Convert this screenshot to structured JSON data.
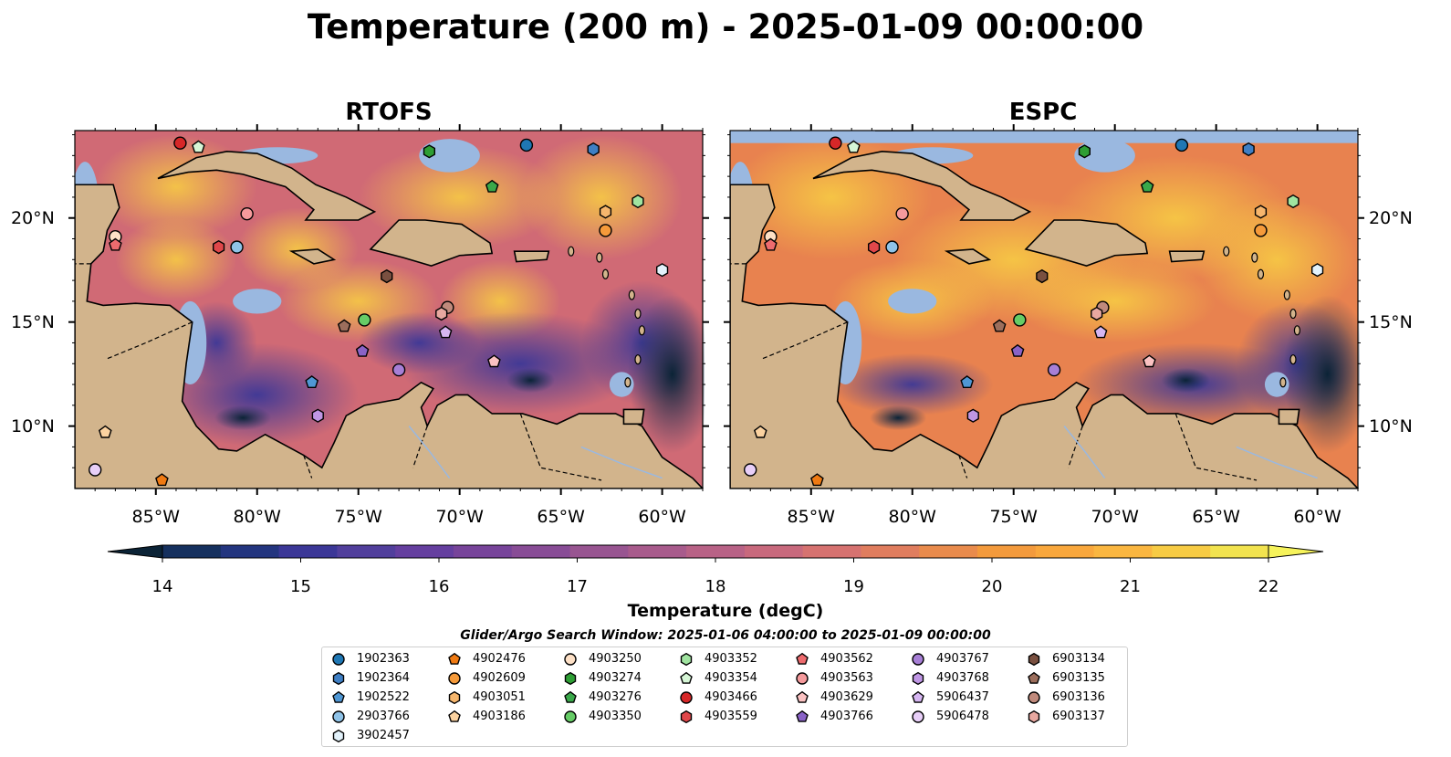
{
  "figure": {
    "title": "Temperature (200 m) - 2025-01-09 00:00:00",
    "search_window": "Glider/Argo Search Window: 2025-01-06 04:00:00 to 2025-01-09 00:00:00"
  },
  "chart_data": {
    "type": "heatmap",
    "variable": "Temperature at 200 m",
    "panels": [
      {
        "title": "RTOFS",
        "region": "Caribbean Sea",
        "lon_range": [
          -89,
          -58
        ],
        "lat_range": [
          7,
          24.2
        ]
      },
      {
        "title": "ESPC",
        "region": "Caribbean Sea",
        "lon_range": [
          -89,
          -58
        ],
        "lat_range": [
          7,
          24.2
        ]
      }
    ],
    "x_ticks": [
      "85°W",
      "80°W",
      "75°W",
      "70°W",
      "65°W",
      "60°W"
    ],
    "x_tick_values": [
      -85,
      -80,
      -75,
      -70,
      -65,
      -60
    ],
    "y_ticks": [
      "20°N",
      "15°N",
      "10°N"
    ],
    "y_tick_values": [
      20,
      15,
      10
    ],
    "colorbar": {
      "label": "Temperature (degC)",
      "ticks": [
        "14",
        "15",
        "16",
        "17",
        "18",
        "19",
        "20",
        "21",
        "22"
      ],
      "vmin": 14,
      "vmax": 22,
      "extend": "both",
      "colors": [
        "#0b2336",
        "#15305e",
        "#23357f",
        "#3b3797",
        "#513f9c",
        "#653f9f",
        "#77449a",
        "#884c96",
        "#985591",
        "#a85b8c",
        "#b86286",
        "#c8697d",
        "#d67270",
        "#e07d5e",
        "#e98b4c",
        "#f39a3c",
        "#f9a73c",
        "#fab640",
        "#f7cb44",
        "#f2e34f",
        "#f6f35b"
      ]
    },
    "floats": [
      {
        "id": "1902363",
        "color": "#1f77b4",
        "marker": "circle",
        "lon": -66.7,
        "lat": 23.5
      },
      {
        "id": "1902364",
        "color": "#3f7fc4",
        "marker": "hexagon",
        "lon": -63.4,
        "lat": 23.3
      },
      {
        "id": "1902522",
        "color": "#4f97d4",
        "marker": "pentagon",
        "lon": -77.3,
        "lat": 12.1
      },
      {
        "id": "2903766",
        "color": "#8fc3e8",
        "marker": "circle",
        "lon": -81.0,
        "lat": 18.6
      },
      {
        "id": "3902457",
        "color": "#e3f2fb",
        "marker": "hexagon",
        "lon": -60.0,
        "lat": 17.5
      },
      {
        "id": "4902476",
        "color": "#f07a12",
        "marker": "pentagon",
        "lon": -84.7,
        "lat": 7.4
      },
      {
        "id": "4902609",
        "color": "#f59a3a",
        "marker": "circle",
        "lon": -62.8,
        "lat": 19.4
      },
      {
        "id": "4903051",
        "color": "#f6b66d",
        "marker": "hexagon",
        "lon": -62.8,
        "lat": 20.3
      },
      {
        "id": "4903186",
        "color": "#fbd2a0",
        "marker": "pentagon",
        "lon": -87.5,
        "lat": 9.7
      },
      {
        "id": "4903250",
        "color": "#fde0c6",
        "marker": "circle",
        "lon": -87.0,
        "lat": 19.1
      },
      {
        "id": "4903274",
        "color": "#2e9e34",
        "marker": "hexagon",
        "lon": -71.5,
        "lat": 23.2
      },
      {
        "id": "4903276",
        "color": "#3aa84a",
        "marker": "pentagon",
        "lon": -68.4,
        "lat": 21.5
      },
      {
        "id": "4903350",
        "color": "#66cc66",
        "marker": "circle",
        "lon": -74.7,
        "lat": 15.1
      },
      {
        "id": "4903352",
        "color": "#a0e4a0",
        "marker": "hexagon",
        "lon": -61.2,
        "lat": 20.8
      },
      {
        "id": "4903354",
        "color": "#d6f6d6",
        "marker": "pentagon",
        "lon": -82.9,
        "lat": 23.4
      },
      {
        "id": "4903466",
        "color": "#d62728",
        "marker": "circle",
        "lon": -83.8,
        "lat": 23.6
      },
      {
        "id": "4903559",
        "color": "#e0474a",
        "marker": "hexagon",
        "lon": -81.9,
        "lat": 18.6
      },
      {
        "id": "4903562",
        "color": "#ee6b6e",
        "marker": "pentagon",
        "lon": -87.0,
        "lat": 18.7
      },
      {
        "id": "4903563",
        "color": "#f59a9c",
        "marker": "circle",
        "lon": -80.5,
        "lat": 20.2
      },
      {
        "id": "4903629",
        "color": "#fbc2c2",
        "marker": "pentagon",
        "lon": -68.3,
        "lat": 13.1
      },
      {
        "id": "4903766",
        "color": "#8a63c7",
        "marker": "pentagon",
        "lon": -74.8,
        "lat": 13.6
      },
      {
        "id": "4903767",
        "color": "#a77fd6",
        "marker": "circle",
        "lon": -73.0,
        "lat": 12.7
      },
      {
        "id": "4903768",
        "color": "#bf96e4",
        "marker": "hexagon",
        "lon": -77.0,
        "lat": 10.5
      },
      {
        "id": "5906437",
        "color": "#d6b6f2",
        "marker": "pentagon",
        "lon": -70.7,
        "lat": 14.5
      },
      {
        "id": "5906478",
        "color": "#e8cff8",
        "marker": "circle",
        "lon": -88.0,
        "lat": 7.9
      },
      {
        "id": "6903134",
        "color": "#7a5040",
        "marker": "hexagon",
        "lon": -73.6,
        "lat": 17.2
      },
      {
        "id": "6903135",
        "color": "#9c6e5c",
        "marker": "pentagon",
        "lon": -75.7,
        "lat": 14.8
      },
      {
        "id": "6903136",
        "color": "#c08a7c",
        "marker": "circle",
        "lon": -70.6,
        "lat": 15.7
      },
      {
        "id": "6903137",
        "color": "#e8a8a0",
        "marker": "hexagon",
        "lon": -70.9,
        "lat": 15.4
      }
    ]
  }
}
